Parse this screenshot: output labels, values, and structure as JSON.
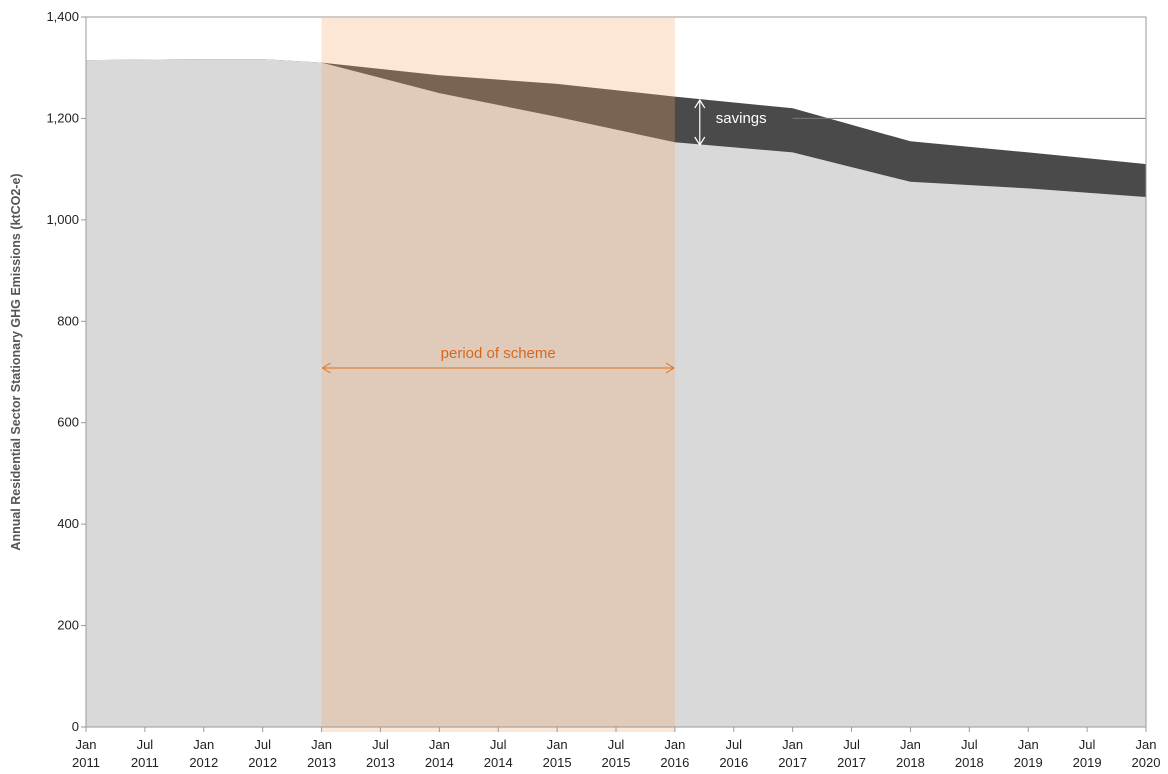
{
  "chart_data": {
    "type": "area",
    "title": "",
    "xlabel": "",
    "ylabel": "Annual Residential Sector Stationary GHG Emissions (ktCO2-e)",
    "ylim": [
      0,
      1400
    ],
    "y_ticks": [
      0,
      200,
      400,
      600,
      800,
      1000,
      1200,
      1400
    ],
    "y_tick_labels": [
      "0",
      "200",
      "400",
      "600",
      "800",
      "1,000",
      "1,200",
      "1,400"
    ],
    "x_ticks": [
      {
        "month": "Jan",
        "year": "2011"
      },
      {
        "month": "Jul",
        "year": "2011"
      },
      {
        "month": "Jan",
        "year": "2012"
      },
      {
        "month": "Jul",
        "year": "2012"
      },
      {
        "month": "Jan",
        "year": "2013"
      },
      {
        "month": "Jul",
        "year": "2013"
      },
      {
        "month": "Jan",
        "year": "2014"
      },
      {
        "month": "Jul",
        "year": "2014"
      },
      {
        "month": "Jan",
        "year": "2015"
      },
      {
        "month": "Jul",
        "year": "2015"
      },
      {
        "month": "Jan",
        "year": "2016"
      },
      {
        "month": "Jul",
        "year": "2016"
      },
      {
        "month": "Jan",
        "year": "2017"
      },
      {
        "month": "Jul",
        "year": "2017"
      },
      {
        "month": "Jan",
        "year": "2018"
      },
      {
        "month": "Jul",
        "year": "2018"
      },
      {
        "month": "Jan",
        "year": "2019"
      },
      {
        "month": "Jul",
        "year": "2019"
      },
      {
        "month": "Jan",
        "year": "2020"
      }
    ],
    "x": [
      "2011-01",
      "2012-01",
      "2012-07",
      "2013-01",
      "2014-01",
      "2015-01",
      "2016-01",
      "2017-01",
      "2018-01",
      "2019-01",
      "2020-01"
    ],
    "series": [
      {
        "values": [
          1315,
          1317,
          1317,
          1310,
          1285,
          1268,
          1243,
          1220,
          1155,
          1133,
          1110
        ]
      },
      {
        "values": [
          1315,
          1317,
          1317,
          1310,
          1250,
          1203,
          1153,
          1133,
          1075,
          1062,
          1045
        ]
      }
    ],
    "reference_line": {
      "y": 1200,
      "x_start": "2017-01",
      "x_end": "2020-01"
    },
    "shaded_period": {
      "x_start": "2013-01",
      "x_end": "2016-01",
      "label": "period of scheme"
    },
    "savings_annotation": {
      "label": "savings",
      "x": "2016-07"
    },
    "colors": {
      "baseline_area": "#4a4a4a",
      "scheme_area": "#d9d9d9",
      "period_shade": "#f4a46a",
      "period_arrow": "#e07020",
      "axis": "#9a9a9a",
      "savings_arrow": "#ffffff"
    },
    "grid": false,
    "legend": "none"
  }
}
